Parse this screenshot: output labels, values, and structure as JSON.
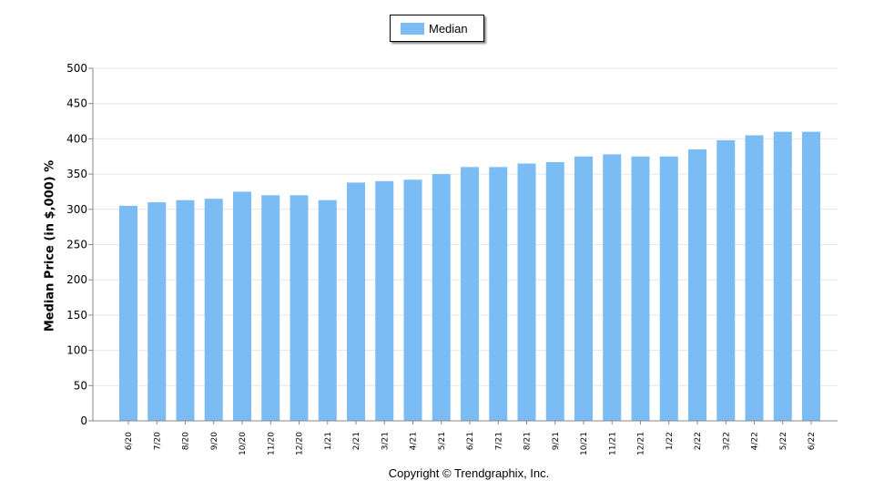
{
  "chart_data": {
    "type": "bar",
    "title": "",
    "xlabel": "",
    "ylabel": "Median Price (in $,000) %",
    "ylim": [
      0,
      500
    ],
    "yticks": [
      0,
      50,
      100,
      150,
      200,
      250,
      300,
      350,
      400,
      450,
      500
    ],
    "grid": true,
    "legend_position": "top-center",
    "categories": [
      "6/20",
      "7/20",
      "8/20",
      "9/20",
      "10/20",
      "11/20",
      "12/20",
      "1/21",
      "2/21",
      "3/21",
      "4/21",
      "5/21",
      "6/21",
      "7/21",
      "8/21",
      "9/21",
      "10/21",
      "11/21",
      "12/21",
      "1/22",
      "2/22",
      "3/22",
      "4/22",
      "5/22",
      "6/22"
    ],
    "series": [
      {
        "name": "Median",
        "color": "#7cbcf4",
        "values": [
          305,
          310,
          313,
          315,
          325,
          320,
          320,
          313,
          338,
          340,
          342,
          350,
          360,
          360,
          365,
          367,
          375,
          378,
          375,
          375,
          385,
          398,
          405,
          410,
          410
        ]
      }
    ]
  },
  "footer": {
    "copyright": "Copyright © Trendgraphix, Inc."
  }
}
